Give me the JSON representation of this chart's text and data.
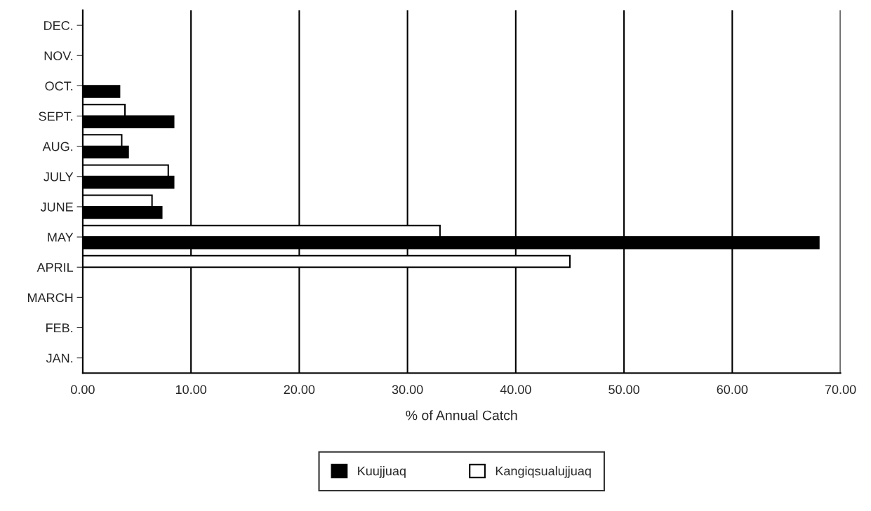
{
  "chart_data": {
    "type": "bar",
    "orientation": "horizontal",
    "xlabel": "% of Annual Catch",
    "categories": [
      "DEC.",
      "NOV.",
      "OCT.",
      "SEPT.",
      "AUG.",
      "JULY",
      "JUNE",
      "MAY",
      "APRIL",
      "MARCH",
      "FEB.",
      "JAN."
    ],
    "series": [
      {
        "name": "Kuujjuaq",
        "color": "#000000",
        "values": [
          null,
          null,
          3.4,
          8.4,
          4.2,
          8.4,
          7.3,
          68,
          null,
          null,
          null,
          null
        ]
      },
      {
        "name": "Kangiqsualujjuaq",
        "color": "#ffffff",
        "values": [
          null,
          null,
          null,
          3.9,
          3.6,
          7.9,
          6.4,
          33,
          45,
          null,
          null,
          null
        ]
      }
    ],
    "xlim": [
      0,
      70
    ],
    "xticks": [
      {
        "value": 0,
        "label": "0.00"
      },
      {
        "value": 10,
        "label": "10.00"
      },
      {
        "value": 20,
        "label": "20.00"
      },
      {
        "value": 30,
        "label": "30.00"
      },
      {
        "value": 40,
        "label": "40.00"
      },
      {
        "value": 50,
        "label": "50.00"
      },
      {
        "value": 60,
        "label": "60.00"
      },
      {
        "value": 70,
        "label": "70.00"
      }
    ],
    "grid": "x",
    "legend": "bottom"
  }
}
